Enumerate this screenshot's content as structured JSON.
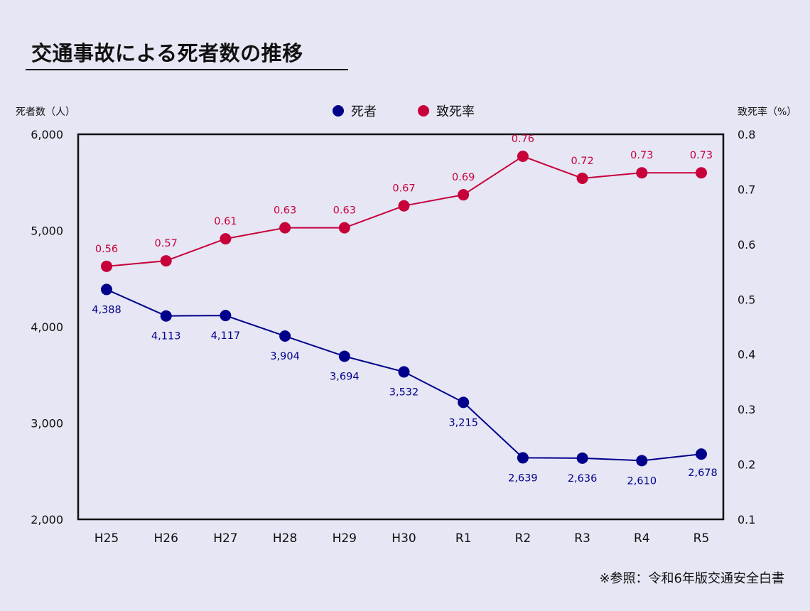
{
  "title": "交通事故による死者数の推移",
  "source_note": "※参照：令和6年版交通安全白書",
  "chart_data": {
    "type": "line",
    "title": "交通事故による死者数の推移",
    "categories": [
      "H25",
      "H26",
      "H27",
      "H28",
      "H29",
      "H30",
      "R1",
      "R2",
      "R3",
      "R4",
      "R5"
    ],
    "left_axis": {
      "label": "死者数（人）",
      "ylim": [
        2000,
        6000
      ],
      "ticks": [
        6000,
        5000,
        4000,
        3000,
        2000
      ],
      "tick_labels": [
        "6,000",
        "5,000",
        "4,000",
        "3,000",
        "2,000"
      ]
    },
    "right_axis": {
      "label": "致死率（%）",
      "ylim": [
        0.1,
        0.8
      ],
      "ticks": [
        0.8,
        0.7,
        0.6,
        0.5,
        0.4,
        0.3,
        0.2,
        0.1
      ],
      "tick_labels": [
        "0.8",
        "0.7",
        "0.6",
        "0.5",
        "0.4",
        "0.3",
        "0.2",
        "0.1"
      ]
    },
    "grid": false,
    "legend_position": "top-center",
    "series": [
      {
        "name": "死者",
        "axis": "left",
        "color": "#00008b",
        "values": [
          4388,
          4113,
          4117,
          3904,
          3694,
          3532,
          3215,
          2639,
          2636,
          2610,
          2678
        ],
        "labels": [
          "4,388",
          "4,113",
          "4,117",
          "3,904",
          "3,694",
          "3,532",
          "3,215",
          "2,639",
          "2,636",
          "2,610",
          "2,678"
        ],
        "label_position": "below"
      },
      {
        "name": "致死率",
        "axis": "right",
        "color": "#c8003a",
        "values": [
          0.56,
          0.57,
          0.61,
          0.63,
          0.63,
          0.67,
          0.69,
          0.76,
          0.72,
          0.73,
          0.73
        ],
        "labels": [
          "0.56",
          "0.57",
          "0.61",
          "0.63",
          "0.63",
          "0.67",
          "0.69",
          "0.76",
          "0.72",
          "0.73",
          "0.73"
        ],
        "label_position": "above"
      }
    ]
  }
}
